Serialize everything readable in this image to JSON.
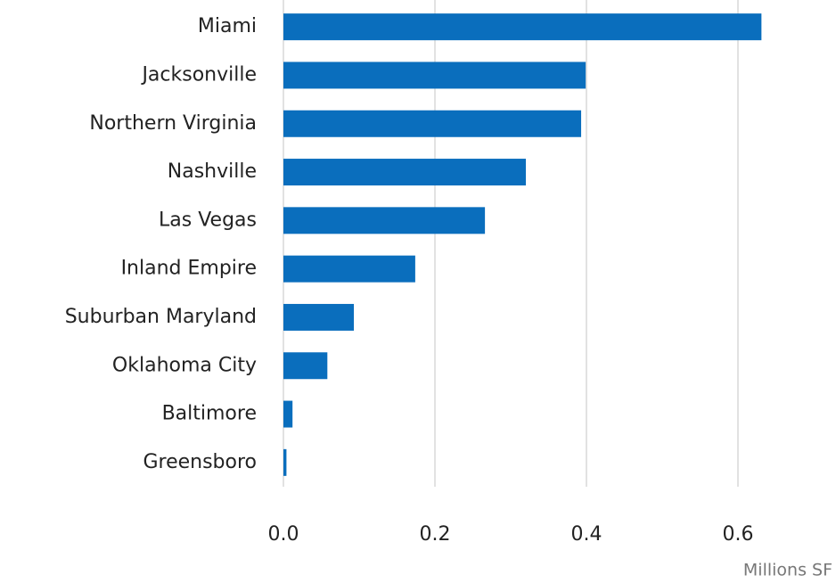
{
  "chart_data": {
    "type": "bar",
    "orientation": "horizontal",
    "categories": [
      "Miami",
      "Jacksonville",
      "Northern Virginia",
      "Nashville",
      "Las Vegas",
      "Inland Empire",
      "Suburban Maryland",
      "Oklahoma City",
      "Baltimore",
      "Greensboro"
    ],
    "values": [
      0.631,
      0.399,
      0.393,
      0.32,
      0.266,
      0.174,
      0.093,
      0.058,
      0.012,
      0.004
    ],
    "color": "#0a6ebd",
    "xlabel": "Millions SF",
    "xlim": [
      0,
      0.7
    ],
    "xticks": [
      {
        "value": 0,
        "label": "0.0"
      },
      0.2,
      0.4,
      0.6
    ],
    "grid": true
  }
}
